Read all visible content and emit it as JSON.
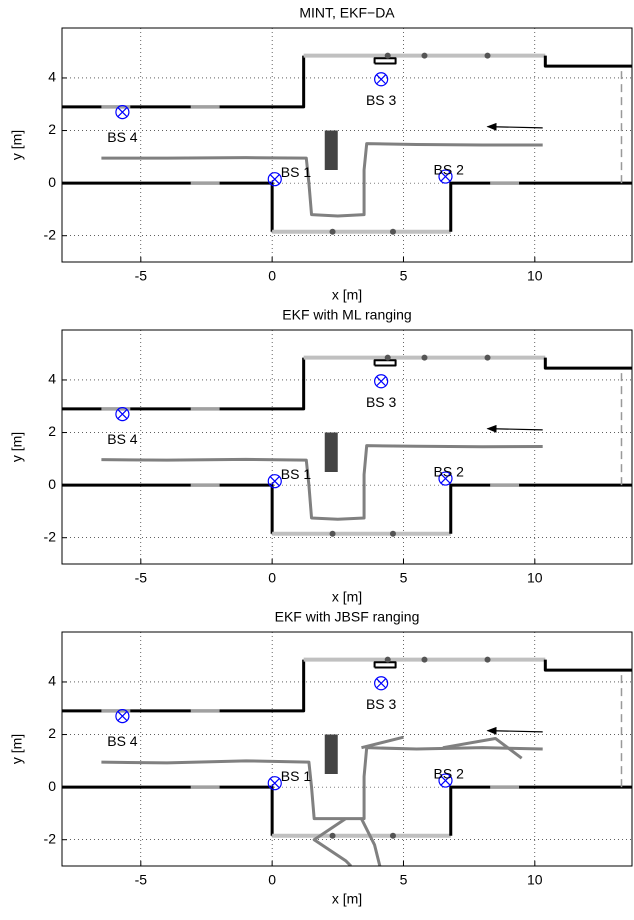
{
  "chart_data": [
    {
      "type": "line",
      "title": "MINT, EKF−DA",
      "xlabel": "x [m]",
      "ylabel": "y [m]",
      "xlim": [
        -8,
        13.7
      ],
      "ylim": [
        -3,
        5.9
      ],
      "xticks": [
        -5,
        0,
        5,
        10
      ],
      "yticks": [
        -2,
        0,
        2,
        4
      ],
      "grid": true,
      "series": [
        {
          "color": "#808080",
          "width": 3,
          "x": [
            10.3,
            8.0,
            5.5,
            3.6,
            3.5,
            3.5,
            2.5,
            1.5,
            1.4,
            1.3,
            -1.0,
            -4.0,
            -6.5
          ],
          "y": [
            1.45,
            1.45,
            1.47,
            1.5,
            0.5,
            -1.2,
            -1.25,
            -1.2,
            0.0,
            0.95,
            0.97,
            0.95,
            0.95
          ]
        }
      ]
    },
    {
      "type": "line",
      "title": "EKF with ML ranging",
      "xlabel": "x [m]",
      "ylabel": "y [m]",
      "xlim": [
        -8,
        13.7
      ],
      "ylim": [
        -3,
        5.9
      ],
      "xticks": [
        -5,
        0,
        5,
        10
      ],
      "yticks": [
        -2,
        0,
        2,
        4
      ],
      "grid": true,
      "series": [
        {
          "color": "#808080",
          "width": 3,
          "x": [
            10.3,
            8.0,
            5.5,
            3.6,
            3.5,
            3.5,
            2.5,
            1.5,
            1.4,
            1.3,
            -1.0,
            -4.0,
            -6.5
          ],
          "y": [
            1.47,
            1.46,
            1.48,
            1.5,
            0.4,
            -1.25,
            -1.3,
            -1.25,
            0.0,
            0.95,
            0.98,
            0.95,
            0.97
          ]
        }
      ]
    },
    {
      "type": "line",
      "title": "EKF with JBSF ranging",
      "xlabel": "x [m]",
      "ylabel": "y [m]",
      "xlim": [
        -8,
        13.7
      ],
      "ylim": [
        -3,
        5.9
      ],
      "xticks": [
        -5,
        0,
        5,
        10
      ],
      "yticks": [
        -2,
        0,
        2,
        4
      ],
      "grid": true,
      "series": [
        {
          "color": "#808080",
          "width": 3,
          "x": [
            10.3,
            8.0,
            5.5,
            3.6,
            3.5,
            3.5,
            2.5,
            1.6,
            1.5,
            1.4,
            -1.0,
            -4.0,
            -6.5
          ],
          "y": [
            1.45,
            1.5,
            1.45,
            1.5,
            0.4,
            -1.2,
            -1.2,
            -1.2,
            0.0,
            0.95,
            1.0,
            0.92,
            0.95
          ]
        },
        {
          "color": "#808080",
          "width": 3,
          "x": [
            3.4,
            5.0
          ],
          "y": [
            1.5,
            1.9
          ]
        },
        {
          "color": "#808080",
          "width": 3,
          "x": [
            6.5,
            8.5,
            9.5
          ],
          "y": [
            1.5,
            1.85,
            1.1
          ]
        },
        {
          "color": "#808080",
          "width": 3,
          "x": [
            2.8,
            1.6,
            2.8,
            3.0
          ],
          "y": [
            -1.2,
            -2.0,
            -2.8,
            -3.0
          ]
        },
        {
          "color": "#808080",
          "width": 3,
          "x": [
            3.4,
            3.9,
            4.1
          ],
          "y": [
            -1.2,
            -2.2,
            -3.0
          ]
        }
      ]
    }
  ],
  "floor_plan": {
    "walls": [
      {
        "color": "#000000",
        "width": 3,
        "x": [
          -8,
          1.2,
          1.2
        ],
        "y": [
          2.9,
          2.9,
          4.85
        ]
      },
      {
        "color": "#c0c0c0",
        "width": 4,
        "x": [
          1.2,
          10.4
        ],
        "y": [
          4.85,
          4.85
        ]
      },
      {
        "color": "#000000",
        "width": 3,
        "x": [
          10.4,
          10.4,
          13.7
        ],
        "y": [
          4.85,
          4.45,
          4.45
        ]
      },
      {
        "color": "#000000",
        "width": 3,
        "x": [
          -8,
          0,
          0
        ],
        "y": [
          0,
          0,
          -1.85
        ]
      },
      {
        "color": "#c0c0c0",
        "width": 4,
        "x": [
          0,
          6.8
        ],
        "y": [
          -1.85,
          -1.85
        ]
      },
      {
        "color": "#000000",
        "width": 3,
        "x": [
          6.8,
          6.8,
          13.7
        ],
        "y": [
          -1.85,
          0,
          0
        ]
      },
      {
        "color": "#a0a0a0",
        "width": 3,
        "x": [
          -6.5,
          -5.4
        ],
        "y": [
          2.9,
          2.9
        ]
      },
      {
        "color": "#a0a0a0",
        "width": 3,
        "x": [
          -3.1,
          -2.0
        ],
        "y": [
          2.9,
          2.9
        ]
      },
      {
        "color": "#a0a0a0",
        "width": 3,
        "x": [
          -3.1,
          -2.0
        ],
        "y": [
          0,
          0
        ]
      },
      {
        "color": "#a0a0a0",
        "width": 3,
        "x": [
          8.3,
          9.4
        ],
        "y": [
          0,
          0
        ]
      },
      {
        "color": "#999999",
        "width": 1.5,
        "dash": true,
        "x": [
          13.3,
          13.3
        ],
        "y": [
          0,
          4.45
        ]
      },
      {
        "color": "#444444",
        "width": 13,
        "x": [
          2.25,
          2.25
        ],
        "y": [
          0.5,
          2.0
        ]
      },
      {
        "color": "#000000",
        "width": 2,
        "x": [
          3.9,
          4.7,
          4.7,
          3.9,
          3.9
        ],
        "y": [
          4.55,
          4.55,
          4.75,
          4.75,
          4.55
        ]
      }
    ],
    "landmarks": {
      "color": "#555555",
      "x": [
        4.4,
        5.8,
        8.2,
        2.3,
        4.6
      ],
      "y": [
        4.85,
        4.85,
        4.85,
        -1.85,
        -1.85
      ]
    },
    "arrow": {
      "color": "#000000",
      "x": [
        10.3,
        8.2
      ],
      "y": [
        2.1,
        2.15
      ]
    },
    "base_stations": {
      "color": "#0000ff",
      "labels": [
        "BS 1",
        "BS 2",
        "BS 3",
        "BS 4"
      ],
      "x": [
        0.1,
        6.6,
        4.15,
        -5.7
      ],
      "y": [
        0.15,
        0.25,
        3.95,
        2.7
      ]
    }
  }
}
